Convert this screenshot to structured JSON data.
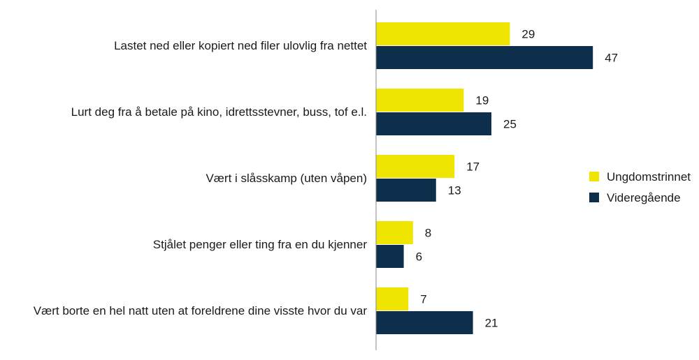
{
  "chart_data": {
    "type": "bar",
    "orientation": "horizontal",
    "categories": [
      "Lastet ned eller kopiert ned filer ulovlig fra nettet",
      "Lurt deg fra å betale på kino, idrettsstevner, buss, tof e.l.",
      "Vært i slåsskamp (uten våpen)",
      "Stjålet penger eller ting fra en du kjenner",
      "Vært borte en hel natt uten at foreldrene dine visste hvor du var"
    ],
    "series": [
      {
        "name": "Ungdomstrinnet",
        "values": [
          29,
          19,
          17,
          8,
          7
        ],
        "color": "#EFE500"
      },
      {
        "name": "Videregående",
        "values": [
          47,
          25,
          13,
          6,
          21
        ],
        "color": "#0E2F4B"
      }
    ],
    "xlim": [
      0,
      70
    ],
    "grid": false,
    "data_labels": true,
    "legend_position": "right"
  }
}
